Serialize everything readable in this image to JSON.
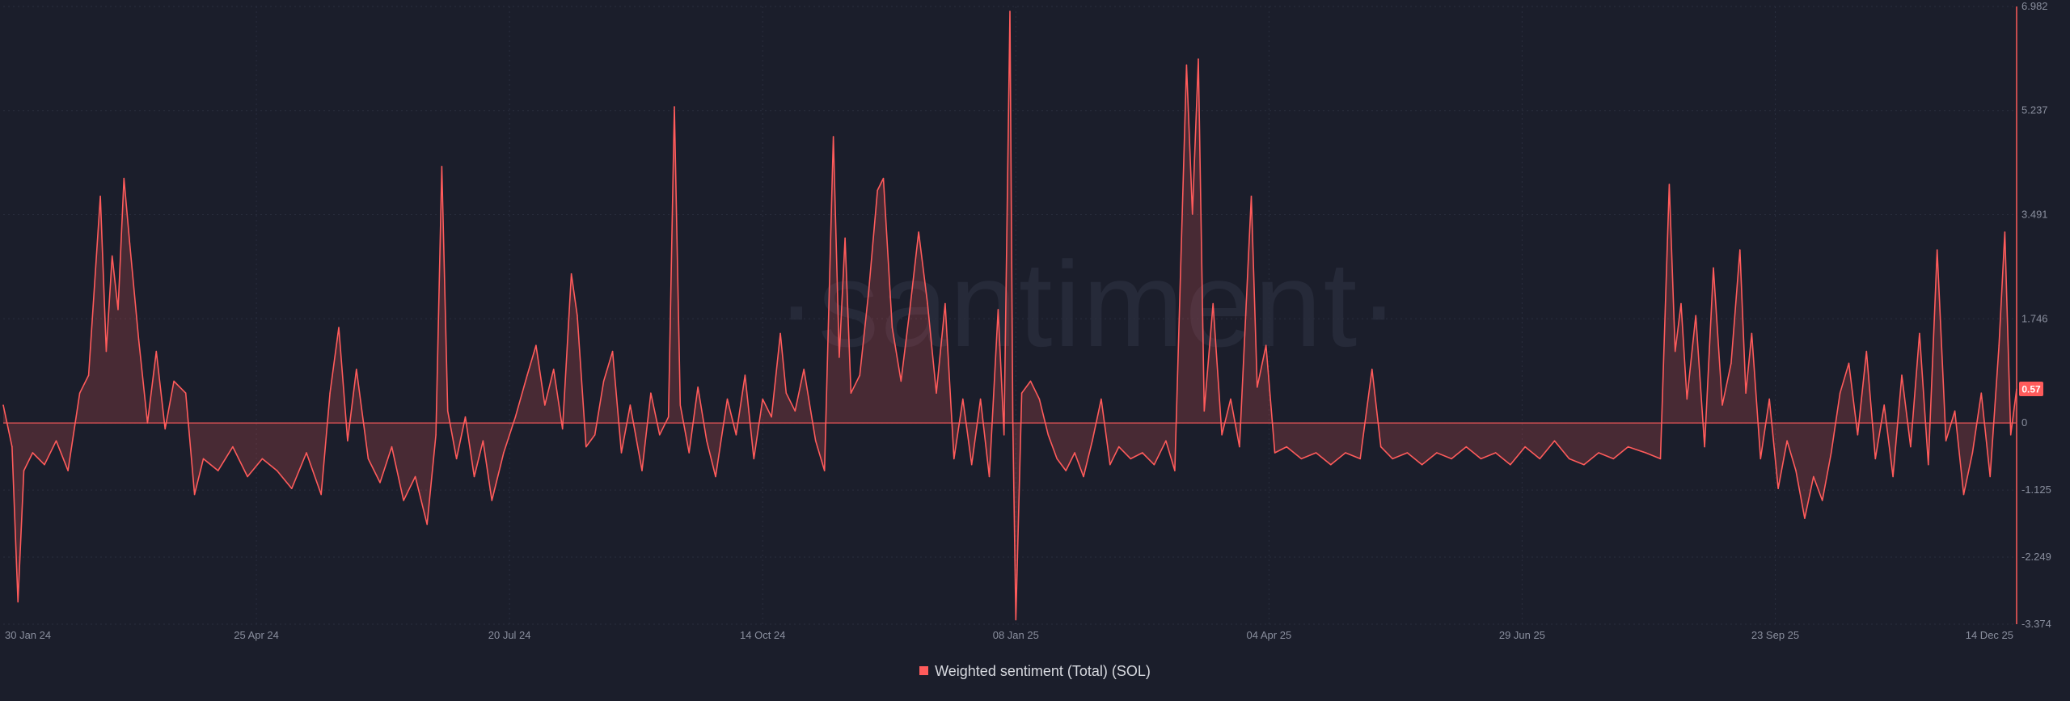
{
  "watermark": "·santiment·",
  "chart_data": {
    "type": "area",
    "title": "",
    "xlabel": "",
    "ylabel": "",
    "x_ticks": [
      "30 Jan 24",
      "25 Apr 24",
      "20 Jul 24",
      "14 Oct 24",
      "08 Jan 25",
      "04 Apr 25",
      "29 Jun 25",
      "23 Sep 25",
      "14 Dec 25"
    ],
    "y_ticks": [
      "6.982",
      "5.237",
      "3.491",
      "1.746",
      "0",
      "-1.125",
      "-2.249",
      "-3.374"
    ],
    "ylim": [
      -3.374,
      6.982
    ],
    "xlim": [
      "2024-01-30",
      "2025-12-14"
    ],
    "grid": true,
    "legend_position": "bottom-center",
    "last_value_badge": "0.57",
    "series": [
      {
        "name": "Weighted sentiment (Total) (SOL)",
        "color": "#ff5b5b",
        "points": [
          [
            "2024-01-30",
            0.3
          ],
          [
            "2024-02-02",
            -0.4
          ],
          [
            "2024-02-04",
            -3.0
          ],
          [
            "2024-02-06",
            -0.8
          ],
          [
            "2024-02-09",
            -0.5
          ],
          [
            "2024-02-13",
            -0.7
          ],
          [
            "2024-02-17",
            -0.3
          ],
          [
            "2024-02-21",
            -0.8
          ],
          [
            "2024-02-25",
            0.5
          ],
          [
            "2024-02-28",
            0.8
          ],
          [
            "2024-03-03",
            3.8
          ],
          [
            "2024-03-05",
            1.2
          ],
          [
            "2024-03-07",
            2.8
          ],
          [
            "2024-03-09",
            1.9
          ],
          [
            "2024-03-11",
            4.1
          ],
          [
            "2024-03-13",
            3.0
          ],
          [
            "2024-03-16",
            1.4
          ],
          [
            "2024-03-19",
            0.0
          ],
          [
            "2024-03-22",
            1.2
          ],
          [
            "2024-03-25",
            -0.1
          ],
          [
            "2024-03-28",
            0.7
          ],
          [
            "2024-04-01",
            0.5
          ],
          [
            "2024-04-04",
            -1.2
          ],
          [
            "2024-04-07",
            -0.6
          ],
          [
            "2024-04-12",
            -0.8
          ],
          [
            "2024-04-17",
            -0.4
          ],
          [
            "2024-04-22",
            -0.9
          ],
          [
            "2024-04-27",
            -0.6
          ],
          [
            "2024-05-02",
            -0.8
          ],
          [
            "2024-05-07",
            -1.1
          ],
          [
            "2024-05-12",
            -0.5
          ],
          [
            "2024-05-17",
            -1.2
          ],
          [
            "2024-05-20",
            0.5
          ],
          [
            "2024-05-23",
            1.6
          ],
          [
            "2024-05-26",
            -0.3
          ],
          [
            "2024-05-29",
            0.9
          ],
          [
            "2024-06-02",
            -0.6
          ],
          [
            "2024-06-06",
            -1.0
          ],
          [
            "2024-06-10",
            -0.4
          ],
          [
            "2024-06-14",
            -1.3
          ],
          [
            "2024-06-18",
            -0.9
          ],
          [
            "2024-06-22",
            -1.7
          ],
          [
            "2024-06-25",
            -0.2
          ],
          [
            "2024-06-27",
            4.3
          ],
          [
            "2024-06-29",
            0.2
          ],
          [
            "2024-07-02",
            -0.6
          ],
          [
            "2024-07-05",
            0.1
          ],
          [
            "2024-07-08",
            -0.9
          ],
          [
            "2024-07-11",
            -0.3
          ],
          [
            "2024-07-14",
            -1.3
          ],
          [
            "2024-07-18",
            -0.5
          ],
          [
            "2024-07-22",
            0.1
          ],
          [
            "2024-07-26",
            0.8
          ],
          [
            "2024-07-29",
            1.3
          ],
          [
            "2024-08-01",
            0.3
          ],
          [
            "2024-08-04",
            0.9
          ],
          [
            "2024-08-07",
            -0.1
          ],
          [
            "2024-08-10",
            2.5
          ],
          [
            "2024-08-12",
            1.8
          ],
          [
            "2024-08-15",
            -0.4
          ],
          [
            "2024-08-18",
            -0.2
          ],
          [
            "2024-08-21",
            0.7
          ],
          [
            "2024-08-24",
            1.2
          ],
          [
            "2024-08-27",
            -0.5
          ],
          [
            "2024-08-30",
            0.3
          ],
          [
            "2024-09-03",
            -0.8
          ],
          [
            "2024-09-06",
            0.5
          ],
          [
            "2024-09-09",
            -0.2
          ],
          [
            "2024-09-12",
            0.1
          ],
          [
            "2024-09-14",
            5.3
          ],
          [
            "2024-09-16",
            0.3
          ],
          [
            "2024-09-19",
            -0.5
          ],
          [
            "2024-09-22",
            0.6
          ],
          [
            "2024-09-25",
            -0.3
          ],
          [
            "2024-09-28",
            -0.9
          ],
          [
            "2024-10-02",
            0.4
          ],
          [
            "2024-10-05",
            -0.2
          ],
          [
            "2024-10-08",
            0.8
          ],
          [
            "2024-10-11",
            -0.6
          ],
          [
            "2024-10-14",
            0.4
          ],
          [
            "2024-10-17",
            0.1
          ],
          [
            "2024-10-20",
            1.5
          ],
          [
            "2024-10-22",
            0.5
          ],
          [
            "2024-10-25",
            0.2
          ],
          [
            "2024-10-28",
            0.9
          ],
          [
            "2024-11-01",
            -0.3
          ],
          [
            "2024-11-04",
            -0.8
          ],
          [
            "2024-11-07",
            4.8
          ],
          [
            "2024-11-09",
            1.1
          ],
          [
            "2024-11-11",
            3.1
          ],
          [
            "2024-11-13",
            0.5
          ],
          [
            "2024-11-16",
            0.8
          ],
          [
            "2024-11-19",
            2.2
          ],
          [
            "2024-11-22",
            3.9
          ],
          [
            "2024-11-24",
            4.1
          ],
          [
            "2024-11-27",
            1.6
          ],
          [
            "2024-11-30",
            0.7
          ],
          [
            "2024-12-03",
            1.9
          ],
          [
            "2024-12-06",
            3.2
          ],
          [
            "2024-12-09",
            2.0
          ],
          [
            "2024-12-12",
            0.5
          ],
          [
            "2024-12-15",
            2.0
          ],
          [
            "2024-12-18",
            -0.6
          ],
          [
            "2024-12-21",
            0.4
          ],
          [
            "2024-12-24",
            -0.7
          ],
          [
            "2024-12-27",
            0.4
          ],
          [
            "2024-12-30",
            -0.9
          ],
          [
            "2025-01-02",
            1.9
          ],
          [
            "2025-01-04",
            -0.2
          ],
          [
            "2025-01-06",
            6.9
          ],
          [
            "2025-01-07",
            0.0
          ],
          [
            "2025-01-08",
            -3.3
          ],
          [
            "2025-01-10",
            0.5
          ],
          [
            "2025-01-13",
            0.7
          ],
          [
            "2025-01-16",
            0.4
          ],
          [
            "2025-01-19",
            -0.2
          ],
          [
            "2025-01-22",
            -0.6
          ],
          [
            "2025-01-25",
            -0.8
          ],
          [
            "2025-01-28",
            -0.5
          ],
          [
            "2025-01-31",
            -0.9
          ],
          [
            "2025-02-03",
            -0.3
          ],
          [
            "2025-02-06",
            0.4
          ],
          [
            "2025-02-09",
            -0.7
          ],
          [
            "2025-02-12",
            -0.4
          ],
          [
            "2025-02-16",
            -0.6
          ],
          [
            "2025-02-20",
            -0.5
          ],
          [
            "2025-02-24",
            -0.7
          ],
          [
            "2025-02-28",
            -0.3
          ],
          [
            "2025-03-03",
            -0.8
          ],
          [
            "2025-03-07",
            6.0
          ],
          [
            "2025-03-09",
            3.5
          ],
          [
            "2025-03-11",
            6.1
          ],
          [
            "2025-03-13",
            0.2
          ],
          [
            "2025-03-16",
            2.0
          ],
          [
            "2025-03-19",
            -0.2
          ],
          [
            "2025-03-22",
            0.4
          ],
          [
            "2025-03-25",
            -0.4
          ],
          [
            "2025-03-29",
            3.8
          ],
          [
            "2025-03-31",
            0.6
          ],
          [
            "2025-04-03",
            1.3
          ],
          [
            "2025-04-06",
            -0.5
          ],
          [
            "2025-04-10",
            -0.4
          ],
          [
            "2025-04-15",
            -0.6
          ],
          [
            "2025-04-20",
            -0.5
          ],
          [
            "2025-04-25",
            -0.7
          ],
          [
            "2025-04-30",
            -0.5
          ],
          [
            "2025-05-05",
            -0.6
          ],
          [
            "2025-05-09",
            0.9
          ],
          [
            "2025-05-12",
            -0.4
          ],
          [
            "2025-05-16",
            -0.6
          ],
          [
            "2025-05-21",
            -0.5
          ],
          [
            "2025-05-26",
            -0.7
          ],
          [
            "2025-05-31",
            -0.5
          ],
          [
            "2025-06-05",
            -0.6
          ],
          [
            "2025-06-10",
            -0.4
          ],
          [
            "2025-06-15",
            -0.6
          ],
          [
            "2025-06-20",
            -0.5
          ],
          [
            "2025-06-25",
            -0.7
          ],
          [
            "2025-06-30",
            -0.4
          ],
          [
            "2025-07-05",
            -0.6
          ],
          [
            "2025-07-10",
            -0.3
          ],
          [
            "2025-07-15",
            -0.6
          ],
          [
            "2025-07-20",
            -0.7
          ],
          [
            "2025-07-25",
            -0.5
          ],
          [
            "2025-07-30",
            -0.6
          ],
          [
            "2025-08-04",
            -0.4
          ],
          [
            "2025-08-10",
            -0.5
          ],
          [
            "2025-08-15",
            -0.6
          ],
          [
            "2025-08-18",
            4.0
          ],
          [
            "2025-08-20",
            1.2
          ],
          [
            "2025-08-22",
            2.0
          ],
          [
            "2025-08-24",
            0.4
          ],
          [
            "2025-08-27",
            1.8
          ],
          [
            "2025-08-30",
            -0.4
          ],
          [
            "2025-09-02",
            2.6
          ],
          [
            "2025-09-05",
            0.3
          ],
          [
            "2025-09-08",
            1.0
          ],
          [
            "2025-09-11",
            2.9
          ],
          [
            "2025-09-13",
            0.5
          ],
          [
            "2025-09-15",
            1.5
          ],
          [
            "2025-09-18",
            -0.6
          ],
          [
            "2025-09-21",
            0.4
          ],
          [
            "2025-09-24",
            -1.1
          ],
          [
            "2025-09-27",
            -0.3
          ],
          [
            "2025-09-30",
            -0.8
          ],
          [
            "2025-10-03",
            -1.6
          ],
          [
            "2025-10-06",
            -0.9
          ],
          [
            "2025-10-09",
            -1.3
          ],
          [
            "2025-10-12",
            -0.5
          ],
          [
            "2025-10-15",
            0.5
          ],
          [
            "2025-10-18",
            1.0
          ],
          [
            "2025-10-21",
            -0.2
          ],
          [
            "2025-10-24",
            1.2
          ],
          [
            "2025-10-27",
            -0.6
          ],
          [
            "2025-10-30",
            0.3
          ],
          [
            "2025-11-02",
            -0.9
          ],
          [
            "2025-11-05",
            0.8
          ],
          [
            "2025-11-08",
            -0.4
          ],
          [
            "2025-11-11",
            1.5
          ],
          [
            "2025-11-14",
            -0.7
          ],
          [
            "2025-11-17",
            2.9
          ],
          [
            "2025-11-20",
            -0.3
          ],
          [
            "2025-11-23",
            0.2
          ],
          [
            "2025-11-26",
            -1.2
          ],
          [
            "2025-11-29",
            -0.5
          ],
          [
            "2025-12-02",
            0.5
          ],
          [
            "2025-12-05",
            -0.9
          ],
          [
            "2025-12-08",
            1.3
          ],
          [
            "2025-12-10",
            3.2
          ],
          [
            "2025-12-12",
            -0.2
          ],
          [
            "2025-12-14",
            0.57
          ]
        ]
      }
    ]
  }
}
